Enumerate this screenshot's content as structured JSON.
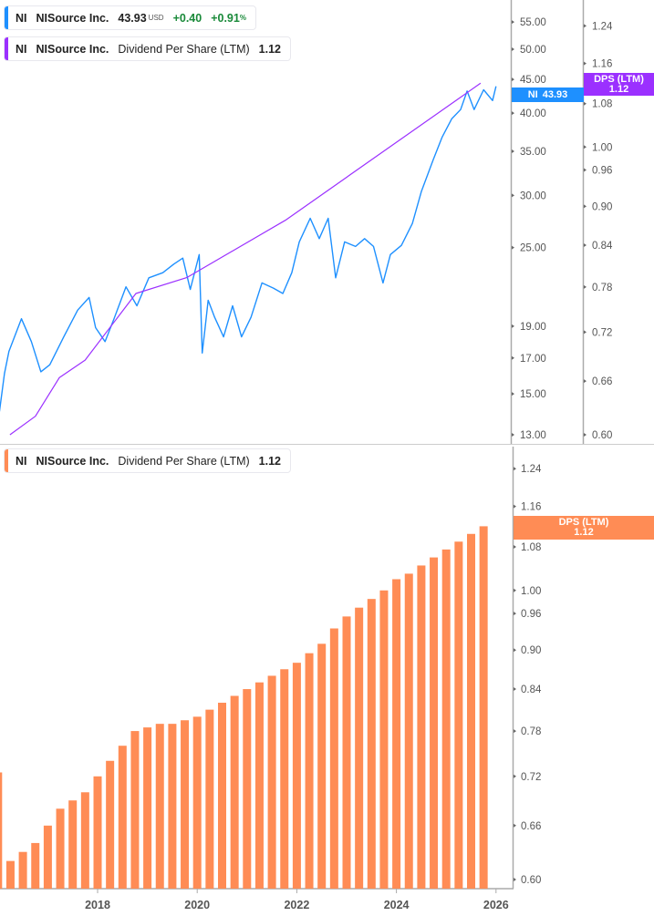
{
  "legend_price": {
    "ticker": "NI",
    "name": "NISource Inc.",
    "price": "43.93",
    "currency": "USD",
    "change": "+0.40",
    "change_pct": "+0.91",
    "pct_sign": "%",
    "color": "#1e90ff"
  },
  "legend_dps_top": {
    "ticker": "NI",
    "name": "NISource Inc.",
    "metric": "Dividend Per Share (LTM)",
    "value": "1.12",
    "color": "#9b30ff"
  },
  "legend_dps_bottom": {
    "ticker": "NI",
    "name": "NISource Inc.",
    "metric": "Dividend Per Share (LTM)",
    "value": "1.12",
    "color": "#ff8c55"
  },
  "tags": {
    "price": {
      "label": "NI",
      "value": "43.93"
    },
    "dps_top": {
      "label": "DPS (LTM)",
      "value": "1.12"
    },
    "dps_bottom": {
      "label": "DPS (LTM)",
      "value": "1.12"
    }
  },
  "chart_data": [
    {
      "type": "line",
      "scale": "log",
      "series": [
        {
          "name": "NI",
          "axis": "price",
          "color": "#1e90ff",
          "x": [
            2016.03,
            2016.13,
            2016.22,
            2016.47,
            2016.67,
            2016.86,
            2017.04,
            2017.32,
            2017.6,
            2017.83,
            2017.96,
            2018.15,
            2018.33,
            2018.57,
            2018.79,
            2019.03,
            2019.31,
            2019.53,
            2019.71,
            2019.86,
            2020.04,
            2020.1,
            2020.16,
            2020.22,
            2020.35,
            2020.53,
            2020.71,
            2020.89,
            2021.08,
            2021.3,
            2021.53,
            2021.72,
            2021.9,
            2022.05,
            2022.27,
            2022.45,
            2022.63,
            2022.78,
            2022.96,
            2023.18,
            2023.36,
            2023.54,
            2023.73,
            2023.88,
            2024.1,
            2024.32,
            2024.5,
            2024.74,
            2024.92,
            2025.11,
            2025.29,
            2025.42,
            2025.56,
            2025.75,
            2025.93,
            2026.0
          ],
          "y": [
            14.1,
            16.1,
            17.4,
            19.5,
            18.0,
            16.2,
            16.6,
            18.3,
            20.1,
            21.0,
            18.9,
            18.0,
            19.5,
            21.8,
            20.4,
            22.5,
            22.9,
            23.6,
            24.1,
            21.6,
            24.4,
            17.3,
            18.9,
            20.8,
            19.6,
            18.3,
            20.4,
            18.3,
            19.6,
            22.1,
            21.7,
            21.3,
            22.9,
            25.5,
            27.7,
            25.8,
            27.7,
            22.5,
            25.5,
            25.1,
            25.8,
            25.1,
            22.1,
            24.4,
            25.2,
            27.2,
            30.4,
            34.0,
            36.8,
            39.2,
            40.5,
            43.2,
            40.5,
            43.4,
            41.8,
            43.93
          ]
        },
        {
          "name": "DPS (LTM)",
          "axis": "dps",
          "color": "#9b30ff",
          "x": [
            2016.24,
            2016.75,
            2017.23,
            2017.75,
            2018.77,
            2019.79,
            2021.77,
            2025.69
          ],
          "y": [
            0.6,
            0.62,
            0.664,
            0.685,
            0.771,
            0.793,
            0.878,
            1.12
          ]
        }
      ],
      "price_ticks": [
        "55.00",
        "50.00",
        "45.00",
        "40.00",
        "35.00",
        "30.00",
        "25.00",
        "19.00",
        "17.00",
        "15.00",
        "13.00"
      ],
      "dps_ticks": [
        "1.24",
        "1.16",
        "1.08",
        "1.00",
        "0.96",
        "0.90",
        "0.84",
        "0.78",
        "0.72",
        "0.66",
        "0.60"
      ],
      "price_range": [
        13,
        55
      ],
      "dps_range": [
        0.6,
        1.24
      ]
    },
    {
      "type": "bar",
      "scale": "log",
      "series": [
        {
          "name": "DPS (LTM)",
          "color": "#ff8c55",
          "x": [
            2016.0,
            2016.25,
            2016.5,
            2016.75,
            2017.0,
            2017.25,
            2017.5,
            2017.75,
            2018.0,
            2018.25,
            2018.5,
            2018.75,
            2019.0,
            2019.25,
            2019.5,
            2019.75,
            2020.0,
            2020.25,
            2020.5,
            2020.75,
            2021.0,
            2021.25,
            2021.5,
            2021.75,
            2022.0,
            2022.25,
            2022.5,
            2022.75,
            2023.0,
            2023.25,
            2023.5,
            2023.75,
            2024.0,
            2024.25,
            2024.5,
            2024.75,
            2025.0,
            2025.25,
            2025.5,
            2025.75
          ],
          "values": [
            0.725,
            0.62,
            0.63,
            0.64,
            0.66,
            0.68,
            0.69,
            0.7,
            0.72,
            0.74,
            0.76,
            0.78,
            0.785,
            0.79,
            0.79,
            0.795,
            0.8,
            0.81,
            0.82,
            0.83,
            0.84,
            0.85,
            0.86,
            0.87,
            0.88,
            0.895,
            0.91,
            0.935,
            0.955,
            0.97,
            0.985,
            1.0,
            1.02,
            1.03,
            1.045,
            1.06,
            1.075,
            1.09,
            1.105,
            1.12
          ]
        }
      ],
      "dps_ticks": [
        "1.24",
        "1.16",
        "1.08",
        "1.00",
        "0.96",
        "0.90",
        "0.84",
        "0.78",
        "0.72",
        "0.66",
        "0.60"
      ],
      "dps_range": [
        0.6,
        1.24
      ],
      "x_ticks": [
        "2018",
        "2020",
        "2022",
        "2024",
        "2026"
      ]
    }
  ]
}
